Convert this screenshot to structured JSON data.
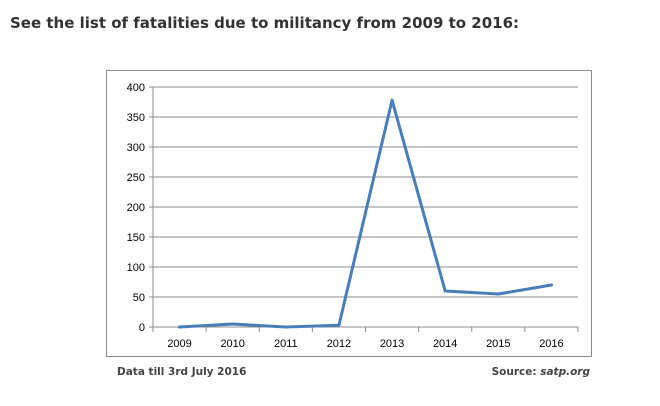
{
  "heading": "See the list of fatalities due to militancy from 2009 to 2016:",
  "footer": {
    "note": "Data till 3rd July 2016",
    "source_label": "Source:",
    "source_name": "satp.org"
  },
  "colors": {
    "line": "#4a7ebb",
    "grid": "#8c8c8c"
  },
  "chart_data": {
    "type": "line",
    "title": "",
    "xlabel": "",
    "ylabel": "",
    "categories": [
      "2009",
      "2010",
      "2011",
      "2012",
      "2013",
      "2014",
      "2015",
      "2016"
    ],
    "values": [
      0,
      5,
      0,
      3,
      378,
      60,
      55,
      70
    ],
    "ylim": [
      0,
      400
    ],
    "yticks": [
      0,
      50,
      100,
      150,
      200,
      250,
      300,
      350,
      400
    ],
    "grid": true,
    "legend": "none"
  }
}
